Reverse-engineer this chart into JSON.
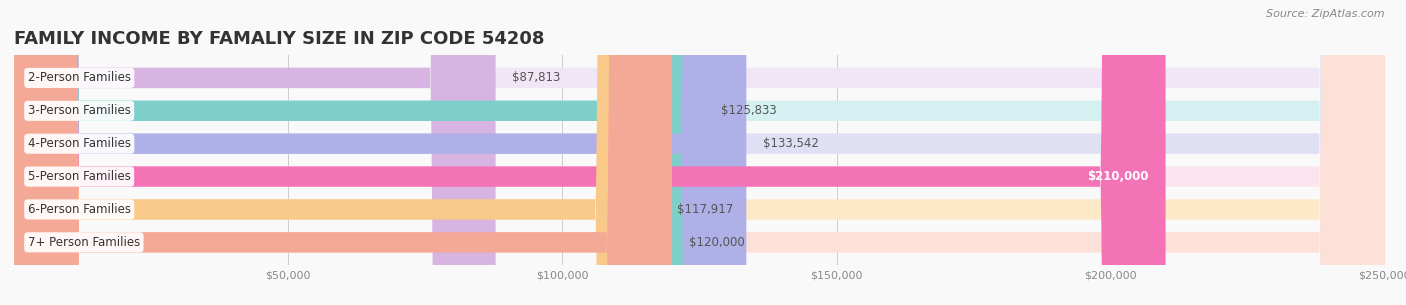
{
  "title": "FAMILY INCOME BY FAMALIY SIZE IN ZIP CODE 54208",
  "source": "Source: ZipAtlas.com",
  "categories": [
    "2-Person Families",
    "3-Person Families",
    "4-Person Families",
    "5-Person Families",
    "6-Person Families",
    "7+ Person Families"
  ],
  "values": [
    87813,
    125833,
    133542,
    210000,
    117917,
    120000
  ],
  "bar_colors": [
    "#d8b4e2",
    "#7ececa",
    "#b0b0e8",
    "#f472b6",
    "#f9c98a",
    "#f4a896"
  ],
  "bar_bg_colors": [
    "#f0e6f6",
    "#d4f0f0",
    "#e0e0f5",
    "#fce4ef",
    "#fde8c8",
    "#fde0d8"
  ],
  "label_colors": [
    "#555555",
    "#555555",
    "#555555",
    "#ffffff",
    "#555555",
    "#555555"
  ],
  "value_labels": [
    "$87,813",
    "$125,833",
    "$133,542",
    "$210,000",
    "$117,917",
    "$120,000"
  ],
  "xlim": [
    0,
    250000
  ],
  "xticks": [
    0,
    50000,
    100000,
    150000,
    200000,
    250000
  ],
  "xtick_labels": [
    "",
    "$50,000",
    "$100,000",
    "$150,000",
    "$200,000",
    "$250,000"
  ],
  "background_color": "#f9f9f9",
  "bar_height": 0.62,
  "title_fontsize": 13,
  "label_fontsize": 8.5,
  "value_fontsize": 8.5,
  "source_fontsize": 8,
  "tick_fontsize": 8
}
